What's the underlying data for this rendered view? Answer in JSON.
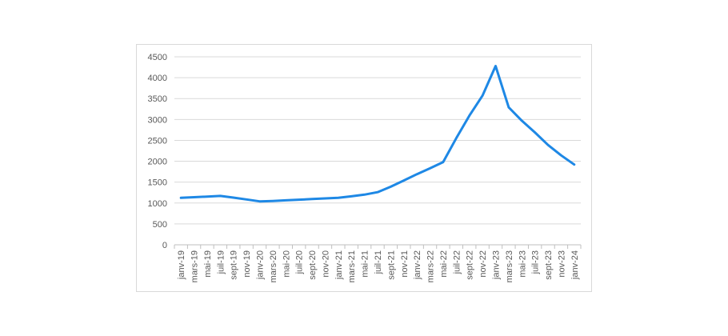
{
  "chart_data": {
    "type": "line",
    "title": "",
    "xlabel": "",
    "ylabel": "",
    "ylim": [
      0,
      4500
    ],
    "yticks": [
      0,
      500,
      1000,
      1500,
      2000,
      2500,
      3000,
      3500,
      4000,
      4500
    ],
    "grid": true,
    "legend": "none",
    "line_color": "#1e88e5",
    "categories": [
      "janv-19",
      "mars-19",
      "mai-19",
      "juil-19",
      "sept-19",
      "nov-19",
      "janv-20",
      "mars-20",
      "mai-20",
      "juil-20",
      "sept-20",
      "nov-20",
      "janv-21",
      "mars-21",
      "mai-21",
      "juil-21",
      "sept-21",
      "nov-21",
      "janv-22",
      "mars-22",
      "mai-22",
      "juil-22",
      "sept-22",
      "nov-22",
      "janv-23",
      "mars-23",
      "mai-23",
      "juil-23",
      "sept-23",
      "nov-23",
      "janv-24"
    ],
    "series": [
      {
        "values": [
          1125,
          1140,
          1155,
          1170,
          1130,
          1085,
          1040,
          1050,
          1065,
          1080,
          1095,
          1110,
          1125,
          1160,
          1200,
          1260,
          1390,
          1540,
          1690,
          1830,
          1980,
          2550,
          3090,
          3570,
          4280,
          3290,
          2970,
          2690,
          2390,
          2140,
          1920
        ]
      }
    ]
  }
}
